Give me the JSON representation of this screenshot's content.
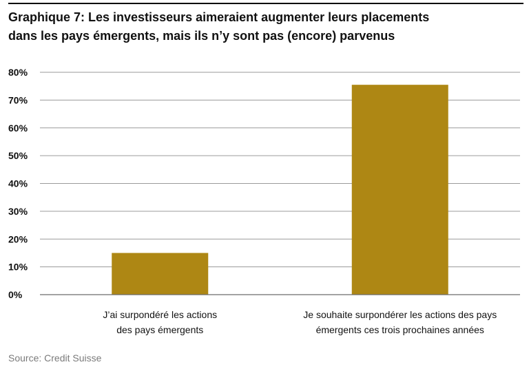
{
  "chart_data": {
    "type": "bar",
    "title_lines": [
      "Graphique 7: Les investisseurs aimeraient augmenter leurs placements",
      "dans les pays émergents, mais ils n’y sont pas (encore) parvenus"
    ],
    "categories": [
      [
        "J’ai surpondéré les actions",
        "des pays émergents"
      ],
      [
        "Je souhaite surpondérer les actions des pays",
        "émergents ces trois prochaines années"
      ]
    ],
    "values": [
      15,
      75.5
    ],
    "ylim": [
      0,
      80
    ],
    "yticks": [
      0,
      10,
      20,
      30,
      40,
      50,
      60,
      70,
      80
    ],
    "ytick_labels": [
      "0%",
      "10%",
      "20%",
      "30%",
      "40%",
      "50%",
      "60%",
      "70%",
      "80%"
    ],
    "grid": true,
    "bar_color": "#ae8714",
    "grid_color": "#9a9a9a"
  },
  "source": "Source: Credit Suisse"
}
